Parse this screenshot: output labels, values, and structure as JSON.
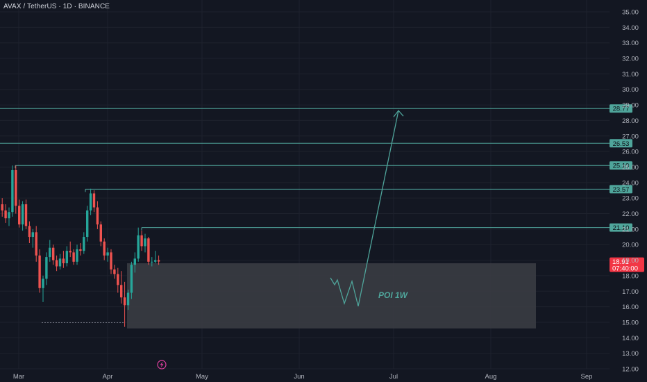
{
  "header": {
    "symbol": "AVAX / TetherUS · 1D · BINANCE"
  },
  "colors": {
    "background": "#131722",
    "grid": "#1e222d",
    "bull": "#26a69a",
    "bear": "#ef5350",
    "level_line": "#4fa59b",
    "poi_zone": "#3a3c42",
    "price_tag": "#f23645",
    "axis_text": "#b2b5be"
  },
  "icons": {
    "replay": "lightning-circle-icon"
  },
  "chart_data": {
    "type": "candlestick",
    "y_axis": {
      "min": 12,
      "max": 35,
      "ticks": [
        "35.00",
        "34.00",
        "33.00",
        "32.00",
        "31.00",
        "30.00",
        "29.00",
        "28.00",
        "27.00",
        "26.00",
        "25.00",
        "24.00",
        "23.00",
        "22.00",
        "21.00",
        "20.00",
        "19.00",
        "18.00",
        "17.00",
        "16.00",
        "15.00",
        "14.00",
        "13.00",
        "12.00"
      ]
    },
    "x_axis": {
      "ticks": [
        "Mar",
        "Apr",
        "May",
        "Jun",
        "Jul",
        "Aug",
        "Sep"
      ]
    },
    "ohlc": [
      [
        22.6,
        23.0,
        21.8,
        22.2
      ],
      [
        22.2,
        22.6,
        21.4,
        21.7
      ],
      [
        21.7,
        22.4,
        21.2,
        22.1
      ],
      [
        22.1,
        25.1,
        21.8,
        24.8
      ],
      [
        24.8,
        25.1,
        22.0,
        22.5
      ],
      [
        22.5,
        22.9,
        21.1,
        21.3
      ],
      [
        21.3,
        22.8,
        20.9,
        22.6
      ],
      [
        22.6,
        22.9,
        21.0,
        21.2
      ],
      [
        21.2,
        21.5,
        20.1,
        20.5
      ],
      [
        20.5,
        21.0,
        19.8,
        20.8
      ],
      [
        20.8,
        21.2,
        18.9,
        19.3
      ],
      [
        19.3,
        19.7,
        16.9,
        17.2
      ],
      [
        17.2,
        18.0,
        16.3,
        17.8
      ],
      [
        17.8,
        19.5,
        17.4,
        19.2
      ],
      [
        19.2,
        20.3,
        18.9,
        19.8
      ],
      [
        19.8,
        20.0,
        18.7,
        19.0
      ],
      [
        19.0,
        19.3,
        18.3,
        18.6
      ],
      [
        18.6,
        19.4,
        18.4,
        19.1
      ],
      [
        19.1,
        19.6,
        18.5,
        18.8
      ],
      [
        18.8,
        19.9,
        18.6,
        19.6
      ],
      [
        19.6,
        20.2,
        19.2,
        19.5
      ],
      [
        19.5,
        19.7,
        18.7,
        18.9
      ],
      [
        18.9,
        20.0,
        18.7,
        19.7
      ],
      [
        19.7,
        20.1,
        19.3,
        19.6
      ],
      [
        19.6,
        20.8,
        19.4,
        20.5
      ],
      [
        20.5,
        22.5,
        20.2,
        22.2
      ],
      [
        22.2,
        23.6,
        21.9,
        23.3
      ],
      [
        23.3,
        23.5,
        22.1,
        22.4
      ],
      [
        22.4,
        22.8,
        21.0,
        21.3
      ],
      [
        21.3,
        21.5,
        19.9,
        20.2
      ],
      [
        20.2,
        20.4,
        19.0,
        19.3
      ],
      [
        19.3,
        19.8,
        18.9,
        19.5
      ],
      [
        19.5,
        19.7,
        18.1,
        18.4
      ],
      [
        18.4,
        18.7,
        17.8,
        18.1
      ],
      [
        18.1,
        18.5,
        16.9,
        17.4
      ],
      [
        17.4,
        18.3,
        16.2,
        16.6
      ],
      [
        16.6,
        17.6,
        14.7,
        16.1
      ],
      [
        16.1,
        17.1,
        15.8,
        16.9
      ],
      [
        16.9,
        18.9,
        16.5,
        18.7
      ],
      [
        18.7,
        19.5,
        18.2,
        19.1
      ],
      [
        19.1,
        21.1,
        18.9,
        20.6
      ],
      [
        20.6,
        20.9,
        19.6,
        19.9
      ],
      [
        19.9,
        20.7,
        19.5,
        20.4
      ],
      [
        20.4,
        20.5,
        18.7,
        18.9
      ],
      [
        18.9,
        19.2,
        18.6,
        18.9
      ],
      [
        18.9,
        19.6,
        18.8,
        19.0
      ],
      [
        19.0,
        19.3,
        18.7,
        18.91
      ]
    ],
    "levels": [
      {
        "value": 28.77,
        "label": "28.77"
      },
      {
        "value": 26.53,
        "label": "26.53"
      },
      {
        "value": 25.1,
        "label": "25.10"
      },
      {
        "value": 23.57,
        "label": "23.57"
      },
      {
        "value": 21.1,
        "label": "21.10"
      }
    ],
    "current_price": {
      "value": 18.91,
      "label": "18.91",
      "countdown": "07:40:00"
    },
    "support_dotted": 15.2,
    "poi_zone": {
      "label": "POI 1W",
      "top": 18.8,
      "bottom": 14.6
    },
    "projection_path": [
      [
        18.0,
        0
      ],
      [
        17.5,
        0
      ],
      [
        17.8,
        0
      ],
      [
        16.0,
        0
      ],
      [
        17.6,
        0
      ],
      [
        16.0,
        0
      ],
      [
        28.77,
        0
      ]
    ]
  }
}
